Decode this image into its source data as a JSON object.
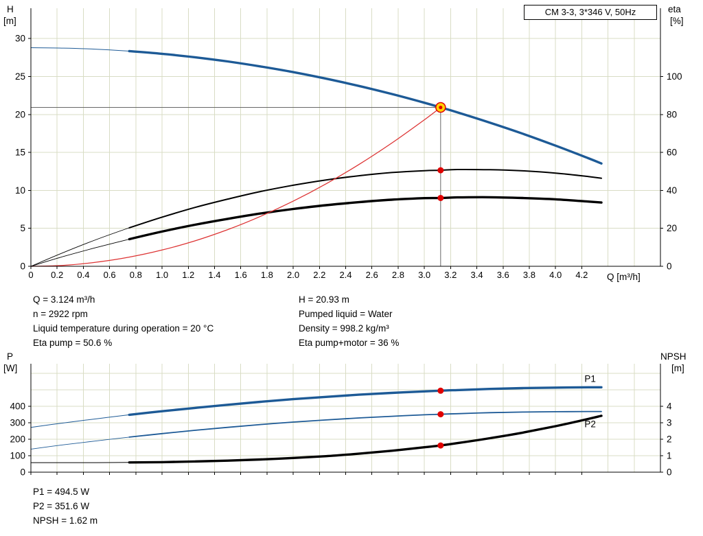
{
  "title_box": "CM 3-3, 3*346 V, 50Hz",
  "info_panels": {
    "mid_left": [
      "Q = 3.124 m³/h",
      "n = 2922 rpm",
      "Liquid temperature during operation = 20 °C",
      "Eta pump = 50.6 %"
    ],
    "mid_right": [
      "H = 20.93 m",
      "Pumped liquid = Water",
      "Density = 998.2 kg/m³",
      "Eta pump+motor = 36 %"
    ],
    "bottom": [
      "P1 = 494.5 W",
      "P2 = 351.6 W",
      "NPSH = 1.62 m"
    ]
  },
  "colors": {
    "curve_blue": "#1d5a96",
    "curve_black": "#000000",
    "curve_red": "#dd3333",
    "marker_red": "#e00000",
    "marker_yellow": "#ffd400",
    "grid": "#d8dcc4",
    "axis": "#000000",
    "ref_line": "#666666",
    "label_blue": "#1d5a96"
  },
  "chart_data": [
    {
      "type": "line",
      "name": "hq-eta-chart",
      "title": "CM 3-3, 3*346 V, 50Hz",
      "x_axis": {
        "label": "Q [m³/h]",
        "range": [
          0,
          4.8
        ],
        "tick_step": 0.2,
        "ticks": [
          0,
          0.2,
          0.4,
          0.6,
          0.8,
          1,
          1.2,
          1.4,
          1.6,
          1.8,
          2,
          2.2,
          2.4,
          2.6,
          2.8,
          3,
          3.2,
          3.4,
          3.6,
          3.8,
          4,
          4.2
        ],
        "tick_labels": [
          "0",
          "0.2",
          "0.4",
          "0.6",
          "0.8",
          "1.0",
          "1.2",
          "1.4",
          "1.6",
          "1.8",
          "2.0",
          "2.2",
          "2.4",
          "2.6",
          "2.8",
          "3.0",
          "3.2",
          "3.4",
          "3.6",
          "3.8",
          "4.0",
          "4.2"
        ]
      },
      "left_axis": {
        "label": [
          "H",
          "[m]"
        ],
        "range": [
          0,
          34
        ],
        "ticks": [
          0,
          5,
          10,
          15,
          20,
          25,
          30
        ]
      },
      "right_axis": {
        "label": [
          "eta",
          "[%]"
        ],
        "range": [
          0,
          136
        ],
        "ticks": [
          0,
          20,
          40,
          60,
          80,
          100
        ]
      },
      "duty_point": {
        "q": 3.124,
        "h": 20.93,
        "eta_pump": 50.6,
        "eta_pump_motor": 36
      },
      "duty_lines": {
        "q": 3.124,
        "h": 20.93
      },
      "series": [
        {
          "name": "head-curve",
          "axis": "left",
          "color_key": "curve_blue",
          "width": 3.4,
          "thin_width": 1,
          "thick_from": 0.75,
          "points": [
            [
              0,
              28.8
            ],
            [
              0.25,
              28.75
            ],
            [
              0.5,
              28.6
            ],
            [
              0.75,
              28.35
            ],
            [
              1,
              28.0
            ],
            [
              1.25,
              27.54
            ],
            [
              1.5,
              26.99
            ],
            [
              1.75,
              26.33
            ],
            [
              2,
              25.58
            ],
            [
              2.25,
              24.72
            ],
            [
              2.5,
              23.76
            ],
            [
              2.75,
              22.71
            ],
            [
              3,
              21.55
            ],
            [
              3.124,
              20.93
            ],
            [
              3.25,
              20.29
            ],
            [
              3.5,
              18.93
            ],
            [
              3.75,
              17.47
            ],
            [
              4,
              15.9
            ],
            [
              4.25,
              14.24
            ],
            [
              4.35,
              13.55
            ]
          ]
        },
        {
          "name": "eta-pump-curve",
          "axis": "right",
          "color_key": "curve_black",
          "width": 2,
          "thin_width": 0.9,
          "thick_from": 0.75,
          "points": [
            [
              0,
              0
            ],
            [
              0.25,
              7.3
            ],
            [
              0.5,
              14.1
            ],
            [
              0.75,
              20.3
            ],
            [
              1,
              25.9
            ],
            [
              1.25,
              31.0
            ],
            [
              1.5,
              35.4
            ],
            [
              1.75,
              39.4
            ],
            [
              2,
              42.7
            ],
            [
              2.25,
              45.5
            ],
            [
              2.5,
              47.7
            ],
            [
              2.75,
              49.4
            ],
            [
              3,
              50.4
            ],
            [
              3.124,
              50.6
            ],
            [
              3.25,
              51.0
            ],
            [
              3.5,
              50.9
            ],
            [
              3.75,
              50.3
            ],
            [
              4,
              49.1
            ],
            [
              4.25,
              47.3
            ],
            [
              4.35,
              46.4
            ]
          ]
        },
        {
          "name": "eta-pump-motor-curve",
          "axis": "right",
          "color_key": "curve_black",
          "width": 3.4,
          "thin_width": 0.9,
          "thick_from": 0.75,
          "points": [
            [
              0,
              0
            ],
            [
              0.25,
              5.2
            ],
            [
              0.5,
              9.9
            ],
            [
              0.75,
              14.3
            ],
            [
              1,
              18.3
            ],
            [
              1.25,
              21.9
            ],
            [
              1.5,
              25.0
            ],
            [
              1.75,
              27.8
            ],
            [
              2,
              30.2
            ],
            [
              2.25,
              32.2
            ],
            [
              2.5,
              33.8
            ],
            [
              2.75,
              35.1
            ],
            [
              3,
              35.9
            ],
            [
              3.124,
              36.0
            ],
            [
              3.25,
              36.3
            ],
            [
              3.5,
              36.4
            ],
            [
              3.75,
              36.0
            ],
            [
              4,
              35.3
            ],
            [
              4.25,
              34.1
            ],
            [
              4.35,
              33.6
            ]
          ]
        },
        {
          "name": "system-curve",
          "axis": "left",
          "color_key": "curve_red",
          "width": 1.3,
          "points": [
            [
              0,
              0
            ],
            [
              0.25,
              0.13
            ],
            [
              0.5,
              0.54
            ],
            [
              0.75,
              1.21
            ],
            [
              1,
              2.14
            ],
            [
              1.25,
              3.35
            ],
            [
              1.5,
              4.83
            ],
            [
              1.75,
              6.57
            ],
            [
              2,
              8.58
            ],
            [
              2.25,
              10.86
            ],
            [
              2.5,
              13.4
            ],
            [
              2.75,
              16.22
            ],
            [
              3,
              19.3
            ],
            [
              3.124,
              20.93
            ]
          ]
        }
      ],
      "markers": [
        {
          "name": "duty-point",
          "axis": "left",
          "q": 3.124,
          "value": 20.93,
          "r": 7,
          "fill_key": "marker_yellow",
          "stroke_key": "marker_red",
          "stroke_width": 1.5,
          "inner_r": 2.6,
          "inner_fill_key": "marker_red"
        },
        {
          "name": "eta-pump-point",
          "axis": "right",
          "q": 3.124,
          "value": 50.6,
          "r": 4.5,
          "fill_key": "marker_red"
        },
        {
          "name": "eta-pump-motor-point",
          "axis": "right",
          "q": 3.124,
          "value": 36,
          "r": 4.5,
          "fill_key": "marker_red"
        }
      ],
      "series_labels": []
    },
    {
      "type": "line",
      "name": "power-npsh-chart",
      "x_axis": {
        "label": "",
        "range": [
          0,
          4.8
        ],
        "tick_step": 0.2,
        "ticks": [
          0,
          0.2,
          0.4,
          0.6,
          0.8,
          1,
          1.2,
          1.4,
          1.6,
          1.8,
          2,
          2.2,
          2.4,
          2.6,
          2.8,
          3,
          3.2,
          3.4,
          3.6,
          3.8,
          4,
          4.2
        ],
        "tick_labels": null
      },
      "left_axis": {
        "label": [
          "P",
          "[W]"
        ],
        "range": [
          0,
          658
        ],
        "ticks": [
          0,
          100,
          200,
          300,
          400
        ]
      },
      "right_axis": {
        "label": [
          "NPSH",
          "[m]"
        ],
        "range": [
          0,
          6.58
        ],
        "ticks": [
          0,
          1,
          2,
          3,
          4
        ]
      },
      "duty_point": {
        "q": 3.124,
        "p1": 494.5,
        "p2": 351.6,
        "npsh": 1.62
      },
      "series": [
        {
          "name": "p1-curve",
          "axis": "left",
          "color_key": "curve_blue",
          "width": 3.4,
          "thin_width": 1,
          "thick_from": 0.75,
          "points": [
            [
              0,
              272
            ],
            [
              0.25,
              299
            ],
            [
              0.5,
              324
            ],
            [
              0.75,
              348
            ],
            [
              1,
              370
            ],
            [
              1.25,
              390
            ],
            [
              1.5,
              409
            ],
            [
              1.75,
              427
            ],
            [
              2,
              443
            ],
            [
              2.25,
              457
            ],
            [
              2.5,
              470
            ],
            [
              2.75,
              481
            ],
            [
              3,
              490
            ],
            [
              3.124,
              494.5
            ],
            [
              3.25,
              498
            ],
            [
              3.5,
              505
            ],
            [
              3.75,
              510
            ],
            [
              4,
              513
            ],
            [
              4.25,
              515
            ],
            [
              4.35,
              515
            ]
          ]
        },
        {
          "name": "p2-curve",
          "axis": "left",
          "color_key": "curve_blue",
          "width": 1.8,
          "thin_width": 0.9,
          "thick_from": 0.75,
          "points": [
            [
              0,
              140
            ],
            [
              0.25,
              166
            ],
            [
              0.5,
              190
            ],
            [
              0.75,
              213
            ],
            [
              1,
              234
            ],
            [
              1.25,
              254
            ],
            [
              1.5,
              272
            ],
            [
              1.75,
              289
            ],
            [
              2,
              304
            ],
            [
              2.25,
              317
            ],
            [
              2.5,
              329
            ],
            [
              2.75,
              339
            ],
            [
              3,
              348
            ],
            [
              3.124,
              351.6
            ],
            [
              3.25,
              355
            ],
            [
              3.5,
              361
            ],
            [
              3.75,
              365
            ],
            [
              4,
              367
            ],
            [
              4.25,
              368
            ],
            [
              4.35,
              368
            ]
          ]
        },
        {
          "name": "npsh-curve",
          "axis": "right",
          "color_key": "curve_black",
          "width": 3.4,
          "thin_width": 1,
          "thick_from": 0.75,
          "points": [
            [
              0,
              0.58
            ],
            [
              0.25,
              0.58
            ],
            [
              0.5,
              0.58
            ],
            [
              0.75,
              0.59
            ],
            [
              1,
              0.61
            ],
            [
              1.25,
              0.65
            ],
            [
              1.5,
              0.7
            ],
            [
              1.75,
              0.77
            ],
            [
              2,
              0.86
            ],
            [
              2.25,
              0.97
            ],
            [
              2.5,
              1.12
            ],
            [
              2.75,
              1.3
            ],
            [
              3,
              1.51
            ],
            [
              3.124,
              1.62
            ],
            [
              3.25,
              1.76
            ],
            [
              3.5,
              2.06
            ],
            [
              3.75,
              2.4
            ],
            [
              4,
              2.79
            ],
            [
              4.25,
              3.23
            ],
            [
              4.35,
              3.42
            ]
          ]
        }
      ],
      "markers": [
        {
          "name": "p1-point",
          "axis": "left",
          "q": 3.124,
          "value": 494.5,
          "r": 4.5,
          "fill_key": "marker_red"
        },
        {
          "name": "p2-point",
          "axis": "left",
          "q": 3.124,
          "value": 351.6,
          "r": 4.5,
          "fill_key": "marker_red"
        },
        {
          "name": "npsh-point",
          "axis": "right",
          "q": 3.124,
          "value": 1.62,
          "r": 4.5,
          "fill_key": "marker_red"
        }
      ],
      "series_labels": [
        {
          "text": "P1",
          "axis": "left",
          "q": 4.2,
          "value": 565,
          "color_key": "label_blue"
        },
        {
          "text": "P2",
          "axis": "left",
          "q": 4.2,
          "value": 290,
          "color_key": "label_blue"
        }
      ]
    }
  ]
}
